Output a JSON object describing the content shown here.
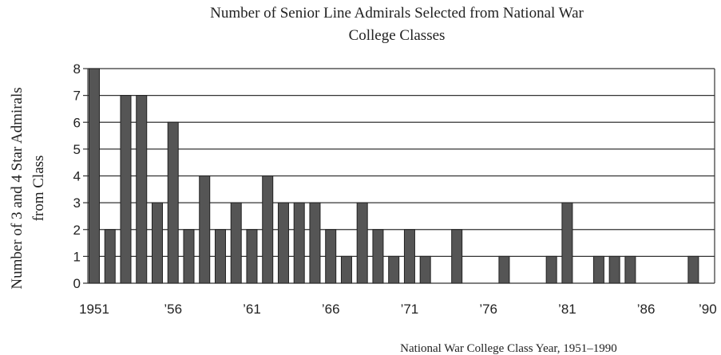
{
  "chart_data": {
    "type": "bar",
    "title_lines": [
      "Number of Senior Line Admirals Selected from National War",
      "College Classes"
    ],
    "xlabel": "National War College Class Year, 1951–1990",
    "ylabel_lines": [
      "Number of 3 and 4 Star Admirals",
      "from Class"
    ],
    "x_start_year": 1951,
    "x_end_year": 1990,
    "ylim": [
      0,
      8
    ],
    "y_ticks": [
      "0",
      "1",
      "2",
      "3",
      "4",
      "5",
      "6",
      "7",
      "8"
    ],
    "x_tick_labels": [
      {
        "year": 1951,
        "label": "1951"
      },
      {
        "year": 1956,
        "label": "’56"
      },
      {
        "year": 1961,
        "label": "’61"
      },
      {
        "year": 1966,
        "label": "’66"
      },
      {
        "year": 1971,
        "label": "’71"
      },
      {
        "year": 1976,
        "label": "’76"
      },
      {
        "year": 1981,
        "label": "’81"
      },
      {
        "year": 1986,
        "label": "’86"
      },
      {
        "year": 1990,
        "label": "’90"
      }
    ],
    "grid": true,
    "bar_color": "#555555",
    "years": [
      1951,
      1952,
      1953,
      1954,
      1955,
      1956,
      1957,
      1958,
      1959,
      1960,
      1961,
      1962,
      1963,
      1964,
      1965,
      1966,
      1967,
      1968,
      1969,
      1970,
      1971,
      1972,
      1973,
      1974,
      1975,
      1976,
      1977,
      1978,
      1979,
      1980,
      1981,
      1982,
      1983,
      1984,
      1985,
      1986,
      1987,
      1988,
      1989,
      1990
    ],
    "values": [
      8,
      2,
      7,
      7,
      3,
      6,
      2,
      4,
      2,
      3,
      2,
      4,
      3,
      3,
      3,
      2,
      1,
      3,
      2,
      1,
      2,
      1,
      0,
      2,
      0,
      0,
      1,
      0,
      0,
      1,
      3,
      0,
      1,
      1,
      1,
      0,
      0,
      0,
      1,
      0
    ]
  }
}
